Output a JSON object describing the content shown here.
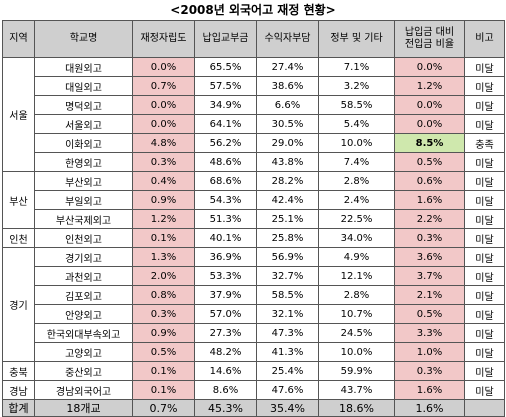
{
  "title": "<2008년 외국어고 재정 현황>",
  "headers": [
    "지역",
    "학교명",
    "재정자립도",
    "납입교부금",
    "수익자부담",
    "정부 및 기타",
    "납입금 대비 전입금 비율",
    "비고"
  ],
  "header_lines": {
    "col7_line1": "납입금 대비",
    "col7_line2": "전입금 비율"
  },
  "regions": [
    "서울",
    "부산",
    "인천",
    "경기",
    "충북",
    "경남"
  ],
  "rows": [
    {
      "school": "대원외고",
      "self": "0.0%",
      "tuition": "65.5%",
      "benef": "27.4%",
      "gov": "7.1%",
      "ratio": "0.0%",
      "note": "미달"
    },
    {
      "school": "대일외고",
      "self": "0.7%",
      "tuition": "57.5%",
      "benef": "38.6%",
      "gov": "3.2%",
      "ratio": "1.2%",
      "note": "미달"
    },
    {
      "school": "명덕외고",
      "self": "0.0%",
      "tuition": "34.9%",
      "benef": "6.6%",
      "gov": "58.5%",
      "ratio": "0.0%",
      "note": "미달"
    },
    {
      "school": "서울외고",
      "self": "0.0%",
      "tuition": "64.1%",
      "benef": "30.5%",
      "gov": "5.4%",
      "ratio": "0.0%",
      "note": "미달"
    },
    {
      "school": "이화외고",
      "self": "4.8%",
      "tuition": "56.2%",
      "benef": "29.0%",
      "gov": "10.0%",
      "ratio": "8.5%",
      "note": "충족"
    },
    {
      "school": "한영외고",
      "self": "0.3%",
      "tuition": "48.6%",
      "benef": "43.8%",
      "gov": "7.4%",
      "ratio": "0.5%",
      "note": "미달"
    },
    {
      "school": "부산외고",
      "self": "0.4%",
      "tuition": "68.6%",
      "benef": "28.2%",
      "gov": "2.8%",
      "ratio": "0.6%",
      "note": "미달"
    },
    {
      "school": "부일외고",
      "self": "0.9%",
      "tuition": "54.3%",
      "benef": "42.4%",
      "gov": "2.4%",
      "ratio": "1.6%",
      "note": "미달"
    },
    {
      "school": "부산국제외고",
      "self": "1.2%",
      "tuition": "51.3%",
      "benef": "25.1%",
      "gov": "22.5%",
      "ratio": "2.2%",
      "note": "미달"
    },
    {
      "school": "인천외고",
      "self": "0.1%",
      "tuition": "40.1%",
      "benef": "25.8%",
      "gov": "34.0%",
      "ratio": "0.3%",
      "note": "미달"
    },
    {
      "school": "경기외고",
      "self": "1.3%",
      "tuition": "36.9%",
      "benef": "56.9%",
      "gov": "4.9%",
      "ratio": "3.6%",
      "note": "미달"
    },
    {
      "school": "과천외고",
      "self": "2.0%",
      "tuition": "53.3%",
      "benef": "32.7%",
      "gov": "12.1%",
      "ratio": "3.7%",
      "note": "미달"
    },
    {
      "school": "김포외고",
      "self": "0.8%",
      "tuition": "37.9%",
      "benef": "58.5%",
      "gov": "2.8%",
      "ratio": "2.1%",
      "note": "미달"
    },
    {
      "school": "안양외고",
      "self": "0.3%",
      "tuition": "57.0%",
      "benef": "32.1%",
      "gov": "10.7%",
      "ratio": "0.5%",
      "note": "미달"
    },
    {
      "school": "한국외대부속외고",
      "self": "0.9%",
      "tuition": "27.3%",
      "benef": "47.3%",
      "gov": "24.5%",
      "ratio": "3.3%",
      "note": "미달"
    },
    {
      "school": "고양외고",
      "self": "0.5%",
      "tuition": "48.2%",
      "benef": "41.3%",
      "gov": "10.0%",
      "ratio": "1.0%",
      "note": "미달"
    },
    {
      "school": "중산외고",
      "self": "0.1%",
      "tuition": "14.6%",
      "benef": "25.4%",
      "gov": "59.9%",
      "ratio": "0.3%",
      "note": "미달"
    },
    {
      "school": "경남외국어고",
      "self": "0.1%",
      "tuition": "8.6%",
      "benef": "47.6%",
      "gov": "43.7%",
      "ratio": "1.6%",
      "note": "미달"
    }
  ],
  "total": {
    "label": "합계",
    "school": "18개교",
    "self": "0.7%",
    "tuition": "45.3%",
    "benef": "35.4%",
    "gov": "18.6%",
    "ratio": "1.6%",
    "note": ""
  },
  "colors": {
    "header_bg": "#cfcfcf",
    "highlight_pink": "#f2c8c8",
    "highlight_green": "#cfe8ad"
  }
}
